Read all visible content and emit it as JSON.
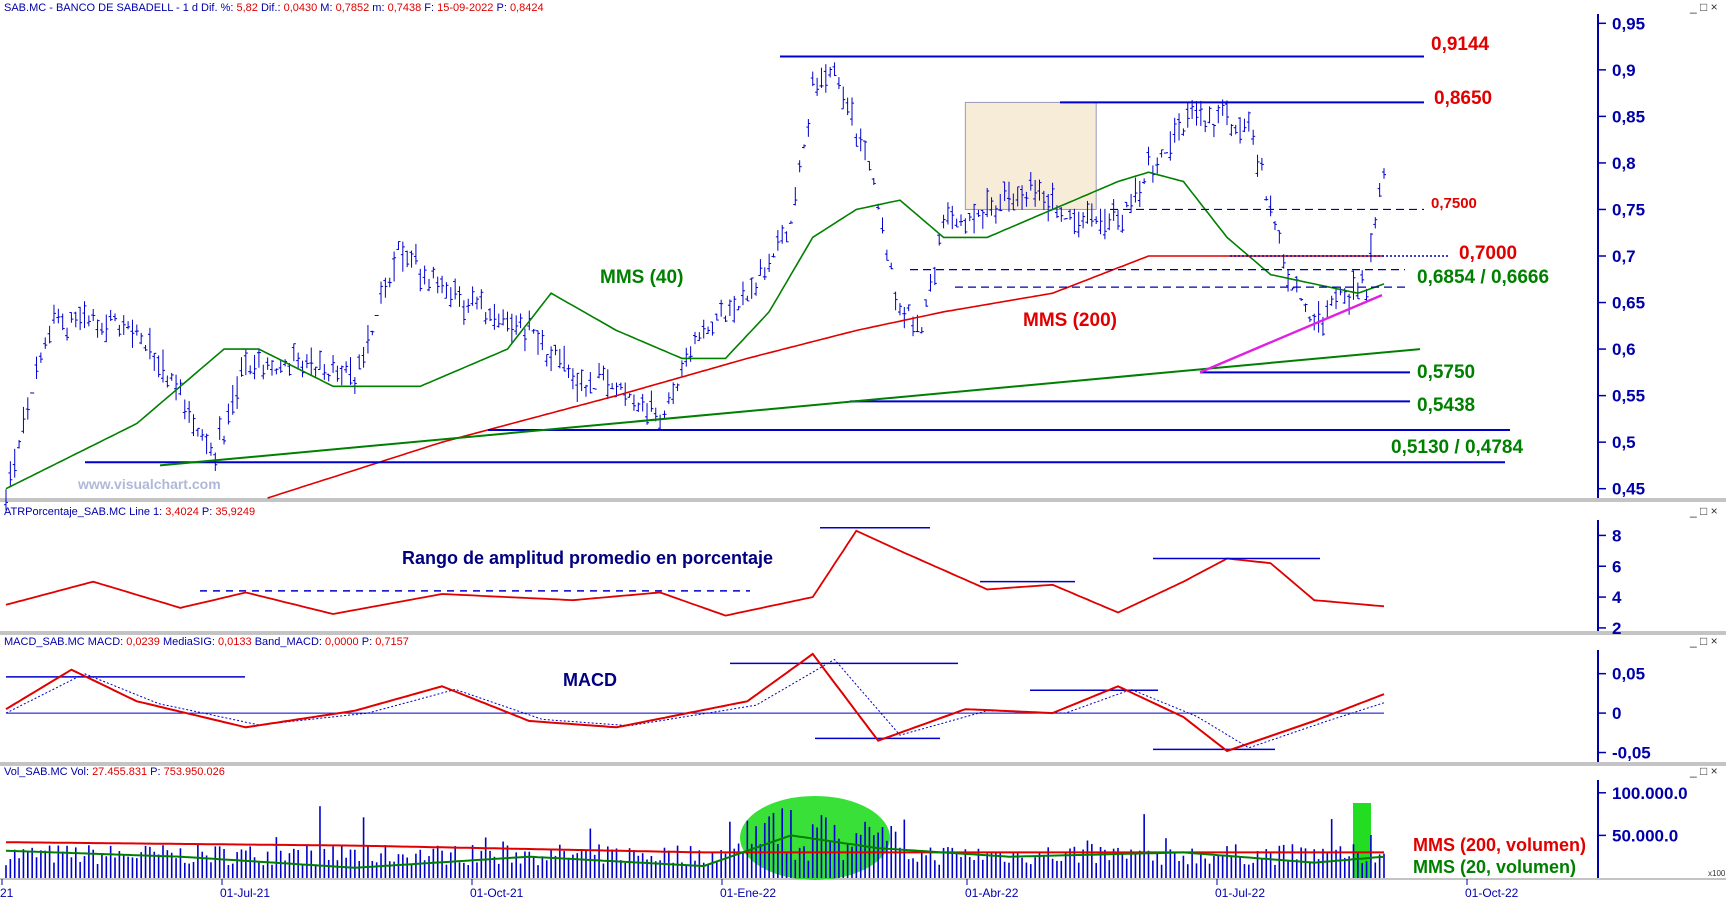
{
  "panels": {
    "price": {
      "header": "SAB.MC - BANCO DE SABADELL - 1 d",
      "stats": [
        {
          "label": "Dif. %:",
          "value": "5,82"
        },
        {
          "label": "Dif.:",
          "value": "0,0430"
        },
        {
          "label": "M:",
          "value": "0,7852"
        },
        {
          "label": "m:",
          "value": "0,7438"
        },
        {
          "label": "F:",
          "value": "15-09-2022"
        },
        {
          "label": "P:",
          "value": "0,8424"
        }
      ],
      "watermark": "www.visualchart.com",
      "ylim": [
        0.44,
        0.96
      ],
      "ticks": [
        "0,45",
        "0,5",
        "0,55",
        "0,6",
        "0,65",
        "0,7",
        "0,75",
        "0,8",
        "0,85",
        "0,9",
        "0,95"
      ],
      "labels": {
        "mms40": "MMS (40)",
        "mms200": "MMS (200)",
        "l9144": "0,9144",
        "l8650": "0,8650",
        "l7500": "0,7500",
        "l7000": "0,7000",
        "l6854": "0,6854 / 0,6666",
        "l5750": "0,5750",
        "l5438": "0,5438",
        "l5130": "0,5130 / 0,4784"
      }
    },
    "atr": {
      "header": "ATRPorcentaje_SAB.MC",
      "stats": [
        {
          "label": "Line 1:",
          "value": "3,4024"
        },
        {
          "label": "P:",
          "value": "35,9249"
        }
      ],
      "title": "Rango de amplitud promedio en porcentaje",
      "ylim": [
        1.8,
        9
      ],
      "ticks": [
        "2",
        "4",
        "6",
        "8"
      ]
    },
    "macd": {
      "header": "MACD_SAB.MC",
      "stats": [
        {
          "label": "MACD:",
          "value": "0,0239"
        },
        {
          "label": "MediaSIG:",
          "value": "0,0133"
        },
        {
          "label": "Band_MACD:",
          "value": "0,0000"
        },
        {
          "label": "P:",
          "value": "0,7157"
        }
      ],
      "title": "MACD",
      "ylim": [
        -0.062,
        0.08
      ],
      "ticks": [
        "0,05",
        "0",
        "-0,05"
      ]
    },
    "volume": {
      "header": "Vol_SAB.MC",
      "stats": [
        {
          "label": "Vol:",
          "value": "27.455.831"
        },
        {
          "label": "P:",
          "value": "753.950.026"
        }
      ],
      "ylim": [
        0,
        115000000
      ],
      "ticks": [
        "100.000.0",
        "50.000.0"
      ],
      "labels": {
        "mms200": "MMS (200, volumen)",
        "mms20": "MMS (20, volumen)"
      },
      "scale_note": "x100"
    }
  },
  "x_axis": {
    "ticks": [
      "21",
      "01-Jul-21",
      "01-Oct-21",
      "01-Ene-22",
      "01-Abr-22",
      "01-Jul-22",
      "01-Oct-22"
    ]
  },
  "colors": {
    "axis": "#0000aa",
    "price": "#0000cc",
    "mms40": "#008000",
    "mms200": "#e00000",
    "trend": "#008000",
    "magenta": "#e020e0",
    "volume": "#0000cc",
    "highlight": "#22dd22"
  },
  "chart_data": [
    {
      "type": "line",
      "title": "SAB.MC - BANCO DE SABADELL - 1 d",
      "ylim": [
        0.44,
        0.96
      ],
      "series": [
        {
          "name": "MMS (40)",
          "points": [
            [
              0,
              0.45
            ],
            [
              30,
              0.52
            ],
            [
              50,
              0.6
            ],
            [
              58,
              0.6
            ],
            [
              75,
              0.56
            ],
            [
              95,
              0.56
            ],
            [
              115,
              0.6
            ],
            [
              125,
              0.66
            ],
            [
              140,
              0.62
            ],
            [
              155,
              0.59
            ],
            [
              165,
              0.59
            ],
            [
              175,
              0.64
            ],
            [
              185,
              0.72
            ],
            [
              195,
              0.75
            ],
            [
              205,
              0.76
            ],
            [
              215,
              0.72
            ],
            [
              225,
              0.72
            ],
            [
              235,
              0.74
            ],
            [
              245,
              0.76
            ],
            [
              255,
              0.78
            ],
            [
              262,
              0.79
            ],
            [
              270,
              0.78
            ],
            [
              280,
              0.72
            ],
            [
              290,
              0.68
            ],
            [
              300,
              0.67
            ],
            [
              310,
              0.66
            ],
            [
              316,
              0.67
            ]
          ]
        },
        {
          "name": "MMS (200)",
          "points": [
            [
              60,
              0.44
            ],
            [
              100,
              0.5
            ],
            [
              140,
              0.55
            ],
            [
              170,
              0.59
            ],
            [
              195,
              0.62
            ],
            [
              215,
              0.64
            ],
            [
              240,
              0.66
            ],
            [
              262,
              0.7
            ],
            [
              280,
              0.7
            ],
            [
              300,
              0.7
            ],
            [
              316,
              0.7
            ]
          ]
        }
      ],
      "levels": [
        0.9144,
        0.865,
        0.75,
        0.7,
        0.6854,
        0.6666,
        0.575,
        0.5438,
        0.513,
        0.4784
      ]
    },
    {
      "type": "line",
      "title": "Rango de amplitud promedio en porcentaje",
      "ylim": [
        1.8,
        9
      ],
      "series": [
        {
          "name": "",
          "points": [
            [
              0,
              3.5
            ],
            [
              20,
              5.0
            ],
            [
              40,
              3.3
            ],
            [
              55,
              4.3
            ],
            [
              75,
              2.9
            ],
            [
              100,
              4.2
            ],
            [
              130,
              3.8
            ],
            [
              150,
              4.3
            ],
            [
              165,
              2.8
            ],
            [
              185,
              4.0
            ],
            [
              195,
              8.3
            ],
            [
              205,
              7.0
            ],
            [
              225,
              4.5
            ],
            [
              240,
              4.8
            ],
            [
              255,
              3.0
            ],
            [
              270,
              5.0
            ],
            [
              280,
              6.5
            ],
            [
              290,
              6.2
            ],
            [
              300,
              3.8
            ],
            [
              316,
              3.4
            ]
          ]
        }
      ]
    },
    {
      "type": "line",
      "title": "MACD",
      "ylim": [
        -0.062,
        0.08
      ],
      "series": [
        {
          "name": "MACD",
          "points": [
            [
              0,
              0.005
            ],
            [
              15,
              0.055
            ],
            [
              30,
              0.015
            ],
            [
              55,
              -0.018
            ],
            [
              80,
              0.003
            ],
            [
              100,
              0.034
            ],
            [
              120,
              -0.01
            ],
            [
              140,
              -0.018
            ],
            [
              170,
              0.015
            ],
            [
              185,
              0.075
            ],
            [
              200,
              -0.035
            ],
            [
              220,
              0.005
            ],
            [
              240,
              0.0
            ],
            [
              255,
              0.034
            ],
            [
              270,
              -0.005
            ],
            [
              280,
              -0.048
            ],
            [
              300,
              -0.01
            ],
            [
              316,
              0.024
            ]
          ]
        },
        {
          "name": "MediaSIG",
          "points": [
            [
              0,
              0.0
            ],
            [
              18,
              0.05
            ],
            [
              35,
              0.012
            ],
            [
              58,
              -0.015
            ],
            [
              83,
              0.0
            ],
            [
              103,
              0.03
            ],
            [
              123,
              -0.008
            ],
            [
              143,
              -0.016
            ],
            [
              172,
              0.01
            ],
            [
              190,
              0.068
            ],
            [
              205,
              -0.028
            ],
            [
              225,
              0.003
            ],
            [
              243,
              0.0
            ],
            [
              258,
              0.03
            ],
            [
              273,
              -0.004
            ],
            [
              285,
              -0.044
            ],
            [
              303,
              -0.01
            ],
            [
              316,
              0.013
            ]
          ]
        }
      ]
    },
    {
      "type": "bar",
      "title": "Vol_SAB.MC",
      "ylim": [
        0,
        115000000
      ],
      "series": [
        {
          "name": "MMS (200, volumen)",
          "points": [
            [
              0,
              42000000
            ],
            [
              80,
              38000000
            ],
            [
              160,
              30000000
            ],
            [
              230,
              30000000
            ],
            [
              316,
              30000000
            ]
          ]
        },
        {
          "name": "MMS (20, volumen)",
          "points": [
            [
              0,
              32000000
            ],
            [
              40,
              25000000
            ],
            [
              80,
              12000000
            ],
            [
              120,
              25000000
            ],
            [
              160,
              14000000
            ],
            [
              180,
              50000000
            ],
            [
              200,
              35000000
            ],
            [
              230,
              25000000
            ],
            [
              270,
              30000000
            ],
            [
              300,
              18000000
            ],
            [
              316,
              25000000
            ]
          ]
        }
      ]
    }
  ]
}
